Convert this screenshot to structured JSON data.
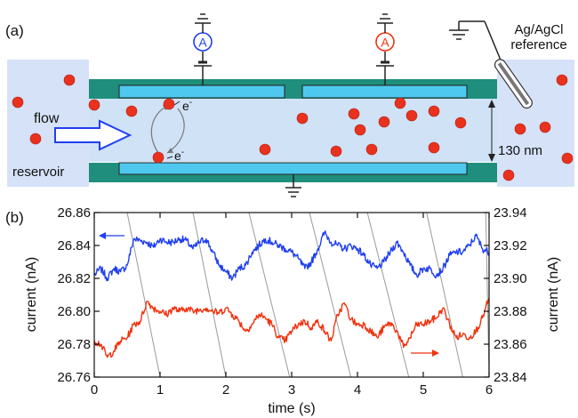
{
  "colors": {
    "reservoir": "#d5e2f8",
    "channel": "#cfe2f6",
    "wall": "#1f8e7c",
    "electrode": "#4fc8f0",
    "particle": "#e8321e",
    "blue_series": "#1f3ff0",
    "red_series": "#f0320e",
    "diagonal": "#9a9a9a"
  },
  "schematic": {
    "panel_label": "(a)",
    "flow_label": "flow",
    "reservoir_label": "reservoir",
    "reference_line1": "Ag/AgCl",
    "reference_line2": "reference",
    "gap_label": "130 nm",
    "ammeter_symbol": "A",
    "electron_top": "e",
    "electron_bottom": "e",
    "electron_charge": "-",
    "icons": [
      "ground-icon",
      "ammeter-icon",
      "flow-arrow-icon",
      "reference-electrode-icon",
      "gap-dimension-icon"
    ]
  },
  "chart_data": {
    "type": "line",
    "panel_label": "(b)",
    "xlabel": "time (s)",
    "ylabel_left": "current  (nA)",
    "ylabel_right": "current  (nA)",
    "xlim": [
      0,
      6
    ],
    "ylim_left": [
      26.76,
      26.86
    ],
    "ylim_right": [
      23.84,
      23.94
    ],
    "x_ticks": [
      "0",
      "1",
      "2",
      "3",
      "4",
      "5",
      "6"
    ],
    "y_ticks_left": [
      "26.76",
      "26.78",
      "26.80",
      "26.82",
      "26.84",
      "26.86"
    ],
    "y_ticks_right": [
      "23.84",
      "23.86",
      "23.88",
      "23.90",
      "23.92",
      "23.94"
    ],
    "grid": false,
    "series": [
      {
        "color": "#1f3ff0",
        "axis": "left",
        "x": [
          0,
          0.1,
          0.2,
          0.3,
          0.4,
          0.5,
          0.6,
          0.7,
          0.8,
          0.9,
          1.0,
          1.1,
          1.2,
          1.3,
          1.4,
          1.5,
          1.6,
          1.7,
          1.8,
          1.9,
          2.0,
          2.1,
          2.2,
          2.3,
          2.4,
          2.5,
          2.6,
          2.7,
          2.8,
          2.9,
          3.0,
          3.1,
          3.2,
          3.3,
          3.4,
          3.5,
          3.6,
          3.7,
          3.8,
          3.9,
          4.0,
          4.1,
          4.2,
          4.3,
          4.4,
          4.5,
          4.6,
          4.7,
          4.8,
          4.9,
          5.0,
          5.1,
          5.2,
          5.3,
          5.4,
          5.5,
          5.6,
          5.7,
          5.8,
          5.9,
          6.0
        ],
        "values": [
          26.822,
          26.826,
          26.82,
          26.826,
          26.824,
          26.828,
          26.844,
          26.843,
          26.842,
          26.839,
          26.844,
          26.842,
          26.842,
          26.844,
          26.843,
          26.838,
          26.842,
          26.844,
          26.836,
          26.828,
          26.824,
          26.82,
          26.826,
          26.828,
          26.836,
          26.84,
          26.844,
          26.842,
          26.84,
          26.838,
          26.836,
          26.832,
          26.826,
          26.83,
          26.838,
          26.848,
          26.842,
          26.84,
          26.838,
          26.84,
          26.838,
          26.834,
          26.828,
          26.826,
          26.83,
          26.836,
          26.842,
          26.836,
          26.828,
          26.822,
          26.826,
          26.826,
          26.822,
          26.826,
          26.834,
          26.836,
          26.836,
          26.84,
          26.846,
          26.838,
          26.836
        ]
      },
      {
        "color": "#f0320e",
        "axis": "right",
        "x": [
          0,
          0.1,
          0.2,
          0.3,
          0.4,
          0.5,
          0.6,
          0.7,
          0.8,
          0.9,
          1.0,
          1.1,
          1.2,
          1.3,
          1.4,
          1.5,
          1.6,
          1.7,
          1.8,
          1.9,
          2.0,
          2.1,
          2.2,
          2.3,
          2.4,
          2.5,
          2.6,
          2.7,
          2.8,
          2.9,
          3.0,
          3.1,
          3.2,
          3.3,
          3.4,
          3.5,
          3.6,
          3.7,
          3.8,
          3.9,
          4.0,
          4.1,
          4.2,
          4.3,
          4.4,
          4.5,
          4.6,
          4.7,
          4.8,
          4.9,
          5.0,
          5.1,
          5.2,
          5.3,
          5.4,
          5.5,
          5.6,
          5.7,
          5.8,
          5.9,
          6.0
        ],
        "values": [
          23.862,
          23.86,
          23.852,
          23.856,
          23.862,
          23.864,
          23.872,
          23.874,
          23.886,
          23.882,
          23.88,
          23.878,
          23.882,
          23.88,
          23.882,
          23.88,
          23.881,
          23.882,
          23.88,
          23.879,
          23.882,
          23.878,
          23.874,
          23.868,
          23.872,
          23.878,
          23.876,
          23.872,
          23.864,
          23.862,
          23.868,
          23.872,
          23.874,
          23.87,
          23.874,
          23.868,
          23.862,
          23.878,
          23.885,
          23.875,
          23.872,
          23.872,
          23.868,
          23.864,
          23.87,
          23.873,
          23.868,
          23.858,
          23.864,
          23.872,
          23.872,
          23.874,
          23.876,
          23.882,
          23.872,
          23.864,
          23.866,
          23.864,
          23.868,
          23.876,
          23.888
        ]
      }
    ],
    "diagonal_lines": [
      {
        "x_top": 0.5,
        "x_bottom": 1.0
      },
      {
        "x_top": 1.5,
        "x_bottom": 2.0
      },
      {
        "x_top": 2.35,
        "x_bottom": 2.97
      },
      {
        "x_top": 3.27,
        "x_bottom": 3.9
      },
      {
        "x_top": 4.15,
        "x_bottom": 4.78
      },
      {
        "x_top": 5.05,
        "x_bottom": 5.6
      },
      {
        "x_top": 5.95,
        "x_bottom": 6.0
      }
    ]
  }
}
